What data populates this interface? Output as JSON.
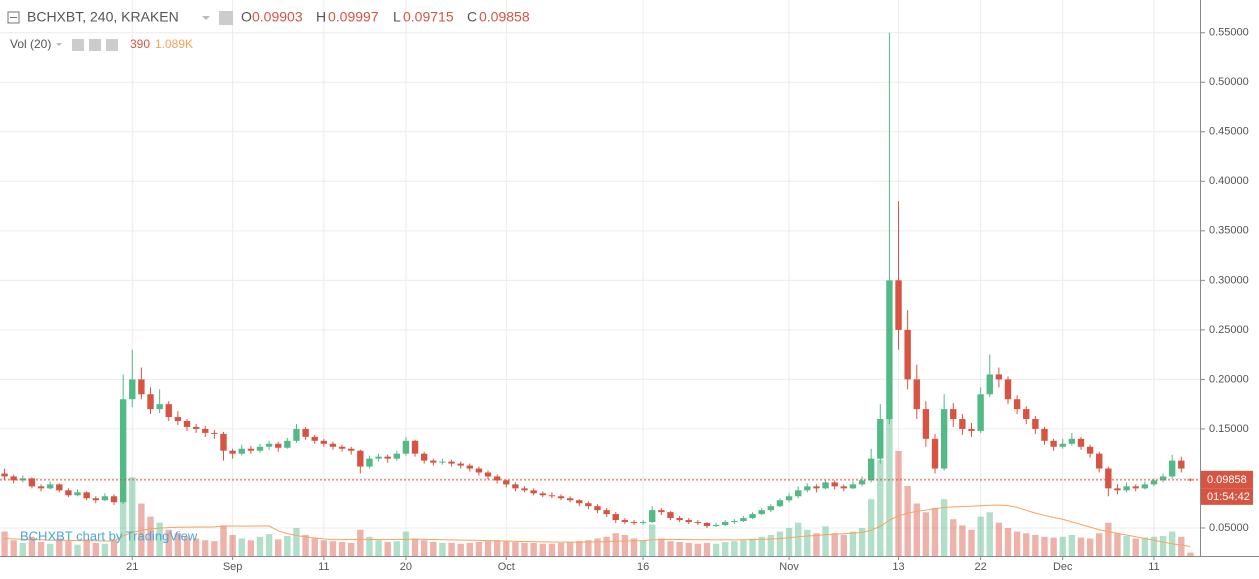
{
  "chart_data": {
    "type": "candlestick",
    "symbol": "BCHXBT, 240, KRAKEN",
    "ohlc_labels": [
      "O",
      "H",
      "L",
      "C"
    ],
    "volume_title": "Vol (20)",
    "volume_ma_value_label": "1.089K",
    "countdown": "01:54:42",
    "watermark": "BCHXBT chart by TradingView",
    "up_color": "#53b987",
    "down_color": "#d75442",
    "ma_color": "#f7a35c",
    "grid": true,
    "ylim": [
      0.0217,
      0.578
    ],
    "yticks": [
      {
        "value": 0.05,
        "label": "0.05000"
      },
      {
        "value": 0.1,
        "label": "0.10000"
      },
      {
        "value": 0.15,
        "label": "0.15000"
      },
      {
        "value": 0.2,
        "label": "0.20000"
      },
      {
        "value": 0.25,
        "label": "0.25000"
      },
      {
        "value": 0.3,
        "label": "0.30000"
      },
      {
        "value": 0.35,
        "label": "0.35000"
      },
      {
        "value": 0.4,
        "label": "0.40000"
      },
      {
        "value": 0.45,
        "label": "0.45000"
      },
      {
        "value": 0.5,
        "label": "0.50000"
      },
      {
        "value": 0.55,
        "label": "0.55000"
      }
    ],
    "categories": [
      null,
      null,
      null,
      null,
      null,
      null,
      null,
      null,
      null,
      null,
      null,
      null,
      null,
      null,
      "21",
      null,
      null,
      null,
      null,
      null,
      null,
      null,
      null,
      null,
      null,
      "Sep",
      null,
      null,
      null,
      null,
      null,
      null,
      null,
      null,
      null,
      "11",
      null,
      null,
      null,
      null,
      null,
      null,
      null,
      null,
      "20",
      null,
      null,
      null,
      null,
      null,
      null,
      null,
      null,
      null,
      null,
      "Oct",
      null,
      null,
      null,
      null,
      null,
      null,
      null,
      null,
      null,
      null,
      null,
      null,
      null,
      null,
      "16",
      null,
      null,
      null,
      null,
      null,
      null,
      null,
      null,
      null,
      null,
      null,
      null,
      null,
      null,
      null,
      "Nov",
      null,
      null,
      null,
      null,
      null,
      null,
      null,
      null,
      null,
      null,
      null,
      "13",
      null,
      null,
      null,
      null,
      null,
      null,
      null,
      null,
      "22",
      null,
      null,
      null,
      null,
      null,
      null,
      null,
      null,
      "Dec",
      null,
      null,
      null,
      null,
      null,
      null,
      null,
      null,
      null,
      "11",
      null,
      null,
      null,
      null
    ],
    "candles": [
      [
        0.105,
        0.11,
        0.098,
        0.102
      ],
      [
        0.102,
        0.104,
        0.095,
        0.098
      ],
      [
        0.098,
        0.103,
        0.096,
        0.1
      ],
      [
        0.1,
        0.101,
        0.09,
        0.092
      ],
      [
        0.092,
        0.094,
        0.087,
        0.09
      ],
      [
        0.09,
        0.097,
        0.089,
        0.094
      ],
      [
        0.094,
        0.095,
        0.086,
        0.088
      ],
      [
        0.088,
        0.09,
        0.081,
        0.083
      ],
      [
        0.083,
        0.089,
        0.082,
        0.086
      ],
      [
        0.086,
        0.087,
        0.078,
        0.08
      ],
      [
        0.08,
        0.082,
        0.075,
        0.078
      ],
      [
        0.078,
        0.085,
        0.077,
        0.082
      ],
      [
        0.082,
        0.084,
        0.073,
        0.076
      ],
      [
        0.076,
        0.205,
        0.074,
        0.18
      ],
      [
        0.18,
        0.23,
        0.172,
        0.2
      ],
      [
        0.2,
        0.212,
        0.18,
        0.185
      ],
      [
        0.185,
        0.192,
        0.165,
        0.17
      ],
      [
        0.17,
        0.19,
        0.166,
        0.175
      ],
      [
        0.175,
        0.178,
        0.158,
        0.162
      ],
      [
        0.162,
        0.168,
        0.154,
        0.158
      ],
      [
        0.158,
        0.16,
        0.148,
        0.152
      ],
      [
        0.152,
        0.155,
        0.146,
        0.15
      ],
      [
        0.15,
        0.153,
        0.142,
        0.146
      ],
      [
        0.146,
        0.149,
        0.14,
        0.145
      ],
      [
        0.145,
        0.147,
        0.118,
        0.128
      ],
      [
        0.128,
        0.13,
        0.12,
        0.125
      ],
      [
        0.125,
        0.134,
        0.123,
        0.13
      ],
      [
        0.13,
        0.133,
        0.125,
        0.128
      ],
      [
        0.128,
        0.135,
        0.126,
        0.132
      ],
      [
        0.132,
        0.138,
        0.129,
        0.135
      ],
      [
        0.135,
        0.137,
        0.127,
        0.131
      ],
      [
        0.131,
        0.141,
        0.13,
        0.138
      ],
      [
        0.138,
        0.155,
        0.136,
        0.15
      ],
      [
        0.15,
        0.152,
        0.139,
        0.142
      ],
      [
        0.142,
        0.144,
        0.135,
        0.138
      ],
      [
        0.138,
        0.14,
        0.132,
        0.135
      ],
      [
        0.135,
        0.137,
        0.129,
        0.132
      ],
      [
        0.132,
        0.134,
        0.127,
        0.13
      ],
      [
        0.13,
        0.132,
        0.124,
        0.128
      ],
      [
        0.128,
        0.129,
        0.105,
        0.112
      ],
      [
        0.112,
        0.123,
        0.11,
        0.12
      ],
      [
        0.12,
        0.125,
        0.117,
        0.122
      ],
      [
        0.122,
        0.124,
        0.116,
        0.12
      ],
      [
        0.12,
        0.128,
        0.118,
        0.125
      ],
      [
        0.125,
        0.142,
        0.123,
        0.138
      ],
      [
        0.138,
        0.139,
        0.122,
        0.125
      ],
      [
        0.125,
        0.127,
        0.115,
        0.118
      ],
      [
        0.118,
        0.12,
        0.113,
        0.116
      ],
      [
        0.116,
        0.12,
        0.114,
        0.117
      ],
      [
        0.117,
        0.119,
        0.112,
        0.115
      ],
      [
        0.115,
        0.117,
        0.11,
        0.113
      ],
      [
        0.113,
        0.115,
        0.107,
        0.11
      ],
      [
        0.11,
        0.112,
        0.103,
        0.106
      ],
      [
        0.106,
        0.108,
        0.099,
        0.102
      ],
      [
        0.102,
        0.104,
        0.095,
        0.098
      ],
      [
        0.098,
        0.099,
        0.091,
        0.094
      ],
      [
        0.094,
        0.096,
        0.087,
        0.09
      ],
      [
        0.09,
        0.092,
        0.086,
        0.088
      ],
      [
        0.088,
        0.09,
        0.083,
        0.085
      ],
      [
        0.085,
        0.087,
        0.081,
        0.083
      ],
      [
        0.083,
        0.086,
        0.08,
        0.082
      ],
      [
        0.082,
        0.084,
        0.078,
        0.08
      ],
      [
        0.08,
        0.082,
        0.076,
        0.078
      ],
      [
        0.078,
        0.079,
        0.072,
        0.075
      ],
      [
        0.075,
        0.077,
        0.069,
        0.072
      ],
      [
        0.072,
        0.074,
        0.065,
        0.068
      ],
      [
        0.068,
        0.07,
        0.061,
        0.064
      ],
      [
        0.064,
        0.066,
        0.055,
        0.058
      ],
      [
        0.058,
        0.06,
        0.054,
        0.056
      ],
      [
        0.056,
        0.058,
        0.053,
        0.055
      ],
      [
        0.055,
        0.058,
        0.053,
        0.056
      ],
      [
        0.056,
        0.072,
        0.055,
        0.068
      ],
      [
        0.068,
        0.07,
        0.063,
        0.066
      ],
      [
        0.066,
        0.067,
        0.058,
        0.06
      ],
      [
        0.06,
        0.062,
        0.056,
        0.058
      ],
      [
        0.058,
        0.06,
        0.054,
        0.056
      ],
      [
        0.056,
        0.058,
        0.053,
        0.055
      ],
      [
        0.055,
        0.056,
        0.05,
        0.052
      ],
      [
        0.052,
        0.055,
        0.051,
        0.053
      ],
      [
        0.053,
        0.058,
        0.052,
        0.056
      ],
      [
        0.056,
        0.059,
        0.054,
        0.057
      ],
      [
        0.057,
        0.062,
        0.056,
        0.06
      ],
      [
        0.06,
        0.066,
        0.059,
        0.064
      ],
      [
        0.064,
        0.07,
        0.063,
        0.068
      ],
      [
        0.068,
        0.074,
        0.066,
        0.072
      ],
      [
        0.072,
        0.08,
        0.071,
        0.078
      ],
      [
        0.078,
        0.085,
        0.076,
        0.082
      ],
      [
        0.082,
        0.092,
        0.08,
        0.088
      ],
      [
        0.088,
        0.095,
        0.086,
        0.092
      ],
      [
        0.092,
        0.094,
        0.086,
        0.09
      ],
      [
        0.09,
        0.099,
        0.089,
        0.096
      ],
      [
        0.096,
        0.098,
        0.089,
        0.092
      ],
      [
        0.092,
        0.094,
        0.087,
        0.09
      ],
      [
        0.09,
        0.097,
        0.089,
        0.094
      ],
      [
        0.094,
        0.102,
        0.092,
        0.098
      ],
      [
        0.098,
        0.13,
        0.096,
        0.12
      ],
      [
        0.12,
        0.175,
        0.115,
        0.16
      ],
      [
        0.16,
        0.55,
        0.155,
        0.3
      ],
      [
        0.3,
        0.38,
        0.23,
        0.25
      ],
      [
        0.25,
        0.27,
        0.19,
        0.2
      ],
      [
        0.2,
        0.215,
        0.16,
        0.17
      ],
      [
        0.17,
        0.178,
        0.132,
        0.14
      ],
      [
        0.14,
        0.145,
        0.105,
        0.11
      ],
      [
        0.11,
        0.185,
        0.108,
        0.17
      ],
      [
        0.17,
        0.176,
        0.152,
        0.16
      ],
      [
        0.16,
        0.165,
        0.144,
        0.15
      ],
      [
        0.15,
        0.156,
        0.142,
        0.148
      ],
      [
        0.148,
        0.192,
        0.146,
        0.185
      ],
      [
        0.185,
        0.225,
        0.182,
        0.205
      ],
      [
        0.205,
        0.212,
        0.192,
        0.2
      ],
      [
        0.2,
        0.203,
        0.175,
        0.18
      ],
      [
        0.18,
        0.184,
        0.165,
        0.17
      ],
      [
        0.17,
        0.173,
        0.155,
        0.16
      ],
      [
        0.16,
        0.163,
        0.145,
        0.15
      ],
      [
        0.15,
        0.152,
        0.134,
        0.138
      ],
      [
        0.138,
        0.14,
        0.128,
        0.132
      ],
      [
        0.132,
        0.14,
        0.13,
        0.135
      ],
      [
        0.135,
        0.146,
        0.133,
        0.14
      ],
      [
        0.14,
        0.142,
        0.129,
        0.132
      ],
      [
        0.132,
        0.134,
        0.121,
        0.125
      ],
      [
        0.125,
        0.127,
        0.106,
        0.11
      ],
      [
        0.11,
        0.112,
        0.082,
        0.09
      ],
      [
        0.09,
        0.094,
        0.084,
        0.088
      ],
      [
        0.088,
        0.096,
        0.086,
        0.092
      ],
      [
        0.092,
        0.094,
        0.087,
        0.09
      ],
      [
        0.09,
        0.097,
        0.089,
        0.094
      ],
      [
        0.094,
        0.1,
        0.092,
        0.098
      ],
      [
        0.098,
        0.105,
        0.096,
        0.102
      ],
      [
        0.102,
        0.124,
        0.1,
        0.118
      ],
      [
        0.118,
        0.122,
        0.106,
        0.11
      ],
      [
        0.09903,
        0.09997,
        0.09715,
        0.09858
      ]
    ],
    "volume": [
      2800,
      1800,
      1500,
      2200,
      1600,
      1400,
      2000,
      1700,
      1300,
      1900,
      1500,
      1400,
      1800,
      14000,
      9000,
      6000,
      4500,
      3800,
      3000,
      2600,
      2200,
      2000,
      1800,
      1700,
      3500,
      2400,
      2000,
      1800,
      2200,
      2500,
      1900,
      2300,
      3200,
      2400,
      2000,
      1800,
      1700,
      1600,
      1500,
      3000,
      2200,
      1800,
      1600,
      1700,
      2800,
      2000,
      1800,
      1600,
      1500,
      1500,
      1400,
      1500,
      1600,
      1700,
      1800,
      1700,
      1600,
      1500,
      1500,
      1400,
      1400,
      1500,
      1600,
      1700,
      1800,
      2000,
      2200,
      2600,
      2400,
      2000,
      1800,
      3600,
      2000,
      1700,
      1600,
      1500,
      1400,
      1500,
      1400,
      1600,
      1700,
      1800,
      2000,
      2200,
      2400,
      2800,
      3200,
      3800,
      3000,
      2600,
      3400,
      2600,
      2400,
      2800,
      3200,
      6500,
      11000,
      16000,
      12000,
      8000,
      6000,
      5000,
      5500,
      6500,
      4200,
      3500,
      3000,
      4500,
      5000,
      3800,
      3200,
      2800,
      2600,
      2400,
      2200,
      2100,
      2200,
      2400,
      2100,
      2000,
      2600,
      3800,
      2600,
      2300,
      2000,
      2100,
      2200,
      2300,
      2800,
      2200,
      390
    ],
    "volume_ma": [
      2000,
      1960,
      1920,
      1900,
      1860,
      1820,
      1800,
      1780,
      1760,
      1760,
      1740,
      1720,
      1720,
      2320,
      2680,
      2940,
      3080,
      3180,
      3240,
      3280,
      3300,
      3310,
      3320,
      3330,
      3420,
      3430,
      3420,
      3420,
      3430,
      3440,
      2880,
      2560,
      2340,
      2180,
      2060,
      1960,
      1890,
      1850,
      1900,
      1900,
      1890,
      1880,
      1870,
      1880,
      1900,
      1910,
      1900,
      1880,
      1860,
      1840,
      1820,
      1800,
      1780,
      1760,
      1740,
      1700,
      1680,
      1660,
      1640,
      1620,
      1600,
      1580,
      1580,
      1590,
      1600,
      1620,
      1640,
      1680,
      1720,
      1740,
      1760,
      1860,
      1880,
      1880,
      1880,
      1870,
      1860,
      1850,
      1840,
      1840,
      1840,
      1850,
      1870,
      1900,
      1940,
      2000,
      2080,
      2200,
      2280,
      2340,
      2440,
      2500,
      2550,
      2620,
      2700,
      2940,
      3400,
      4100,
      4600,
      4900,
      5100,
      5250,
      5400,
      5560,
      5620,
      5660,
      5680,
      5740,
      5800,
      5820,
      5760,
      5560,
      5220,
      4900,
      4650,
      4400,
      4200,
      3900,
      3600,
      3300,
      3000,
      2800,
      2600,
      2400,
      2200,
      2000,
      1800,
      1600,
      1400,
      1250,
      1089
    ]
  }
}
